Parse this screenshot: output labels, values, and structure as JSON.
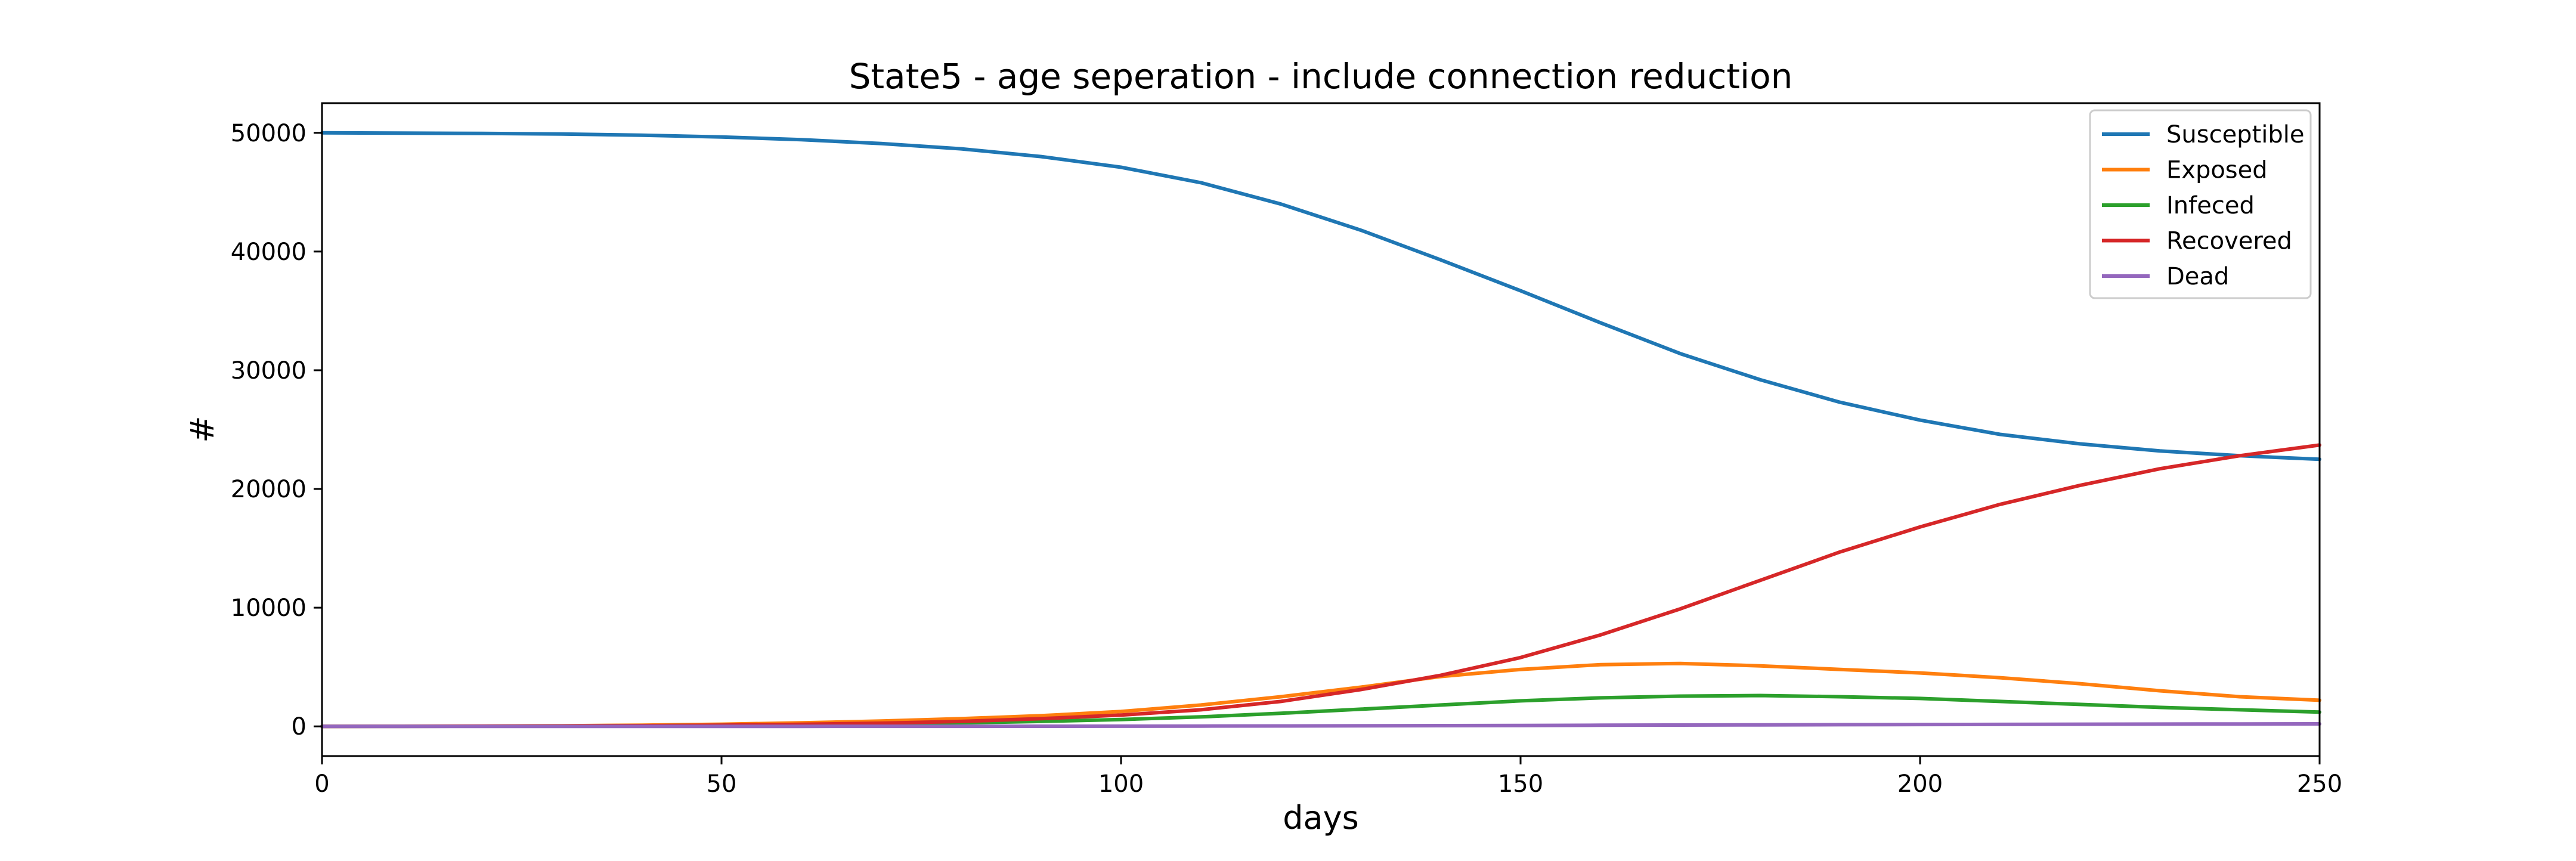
{
  "chart_data": {
    "type": "line",
    "title": "State5 - age seperation - include connection reduction",
    "xlabel": "days",
    "ylabel": "#",
    "xlim": [
      0,
      250
    ],
    "ylim": [
      -2500,
      52500
    ],
    "xticks": [
      0,
      50,
      100,
      150,
      200,
      250
    ],
    "yticks": [
      0,
      10000,
      20000,
      30000,
      40000,
      50000
    ],
    "xtick_labels": [
      "0",
      "50",
      "100",
      "150",
      "200",
      "250"
    ],
    "ytick_labels": [
      "0",
      "10000",
      "20000",
      "30000",
      "40000",
      "50000"
    ],
    "grid": false,
    "legend_position": "top-right",
    "x": [
      0,
      10,
      20,
      30,
      40,
      50,
      60,
      70,
      80,
      90,
      100,
      110,
      120,
      130,
      140,
      150,
      160,
      170,
      180,
      190,
      200,
      210,
      220,
      230,
      240,
      250
    ],
    "series": [
      {
        "name": "Susceptible",
        "color": "#1f77b4",
        "values": [
          50000,
          49980,
          49950,
          49900,
          49800,
          49650,
          49420,
          49100,
          48650,
          48000,
          47100,
          45800,
          44000,
          41800,
          39300,
          36700,
          34000,
          31400,
          29200,
          27300,
          25800,
          24600,
          23800,
          23200,
          22800,
          22500
        ]
      },
      {
        "name": "Exposed",
        "color": "#ff7f0e",
        "values": [
          0,
          10,
          25,
          50,
          100,
          180,
          300,
          450,
          650,
          900,
          1250,
          1800,
          2500,
          3300,
          4200,
          4800,
          5200,
          5300,
          5100,
          4800,
          4500,
          4100,
          3600,
          3000,
          2500,
          2200
        ]
      },
      {
        "name": "Infeced",
        "color": "#2ca02c",
        "values": [
          0,
          5,
          10,
          25,
          50,
          90,
          140,
          210,
          300,
          420,
          580,
          800,
          1100,
          1450,
          1800,
          2150,
          2400,
          2550,
          2600,
          2500,
          2350,
          2100,
          1850,
          1600,
          1400,
          1200
        ]
      },
      {
        "name": "Recovered",
        "color": "#d62728",
        "values": [
          0,
          5,
          15,
          30,
          60,
          100,
          170,
          270,
          420,
          650,
          950,
          1400,
          2100,
          3100,
          4300,
          5800,
          7700,
          9900,
          12300,
          14700,
          16800,
          18700,
          20300,
          21700,
          22800,
          23700
        ]
      },
      {
        "name": "Dead",
        "color": "#9467bd",
        "values": [
          0,
          0,
          0,
          0,
          1,
          2,
          3,
          5,
          8,
          12,
          18,
          25,
          35,
          48,
          62,
          78,
          95,
          110,
          125,
          140,
          155,
          168,
          180,
          192,
          203,
          212
        ]
      }
    ]
  }
}
